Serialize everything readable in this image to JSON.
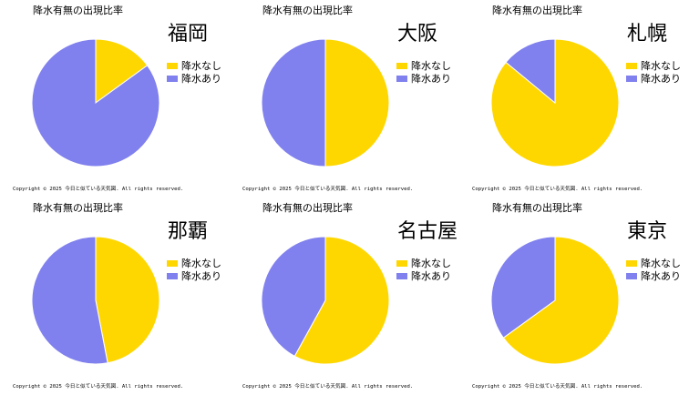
{
  "chart_data": [
    {
      "type": "pie",
      "title": "降水有無の出現比率",
      "city": "福岡",
      "labels": [
        "降水なし",
        "降水あり"
      ],
      "values": [
        0.15,
        0.85
      ],
      "colors": [
        "#FFD700",
        "#8080EE"
      ],
      "copyright": "Copyright ©  2025  今日と似ている天気図. All rights reserved."
    },
    {
      "type": "pie",
      "title": "降水有無の出現比率",
      "city": "大阪",
      "labels": [
        "降水なし",
        "降水あり"
      ],
      "values": [
        0.5,
        0.5
      ],
      "colors": [
        "#FFD700",
        "#8080EE"
      ],
      "copyright": "Copyright ©  2025  今日と似ている天気図. All rights reserved."
    },
    {
      "type": "pie",
      "title": "降水有無の出現比率",
      "city": "札幌",
      "labels": [
        "降水なし",
        "降水あり"
      ],
      "values": [
        0.86,
        0.14
      ],
      "colors": [
        "#FFD700",
        "#8080EE"
      ],
      "copyright": "Copyright ©  2025  今日と似ている天気図. All rights reserved."
    },
    {
      "type": "pie",
      "title": "降水有無の出現比率",
      "city": "那覇",
      "labels": [
        "降水なし",
        "降水あり"
      ],
      "values": [
        0.47,
        0.53
      ],
      "colors": [
        "#FFD700",
        "#8080EE"
      ],
      "copyright": "Copyright ©  2025  今日と似ている天気図. All rights reserved."
    },
    {
      "type": "pie",
      "title": "降水有無の出現比率",
      "city": "名古屋",
      "labels": [
        "降水なし",
        "降水あり"
      ],
      "values": [
        0.58,
        0.42
      ],
      "colors": [
        "#FFD700",
        "#8080EE"
      ],
      "copyright": "Copyright ©  2025  今日と似ている天気図. All rights reserved."
    },
    {
      "type": "pie",
      "title": "降水有無の出現比率",
      "city": "東京",
      "labels": [
        "降水なし",
        "降水あり"
      ],
      "values": [
        0.65,
        0.35
      ],
      "colors": [
        "#FFD700",
        "#8080EE"
      ],
      "copyright": "Copyright ©  2025  今日と似ている天気図. All rights reserved."
    }
  ]
}
